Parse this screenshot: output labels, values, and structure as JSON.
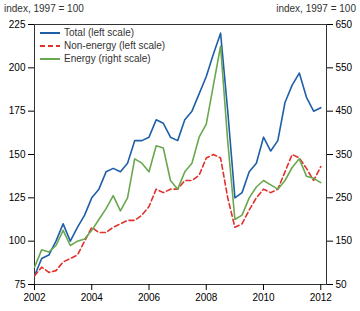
{
  "chart_data": {
    "type": "line",
    "y_label": "index, 1997 = 100",
    "y2_label": "index, 1997 = 100",
    "x": [
      2002,
      2002.25,
      2002.5,
      2002.75,
      2003,
      2003.25,
      2003.5,
      2003.75,
      2004,
      2004.25,
      2004.5,
      2004.75,
      2005,
      2005.25,
      2005.5,
      2005.75,
      2006,
      2006.25,
      2006.5,
      2006.75,
      2007,
      2007.25,
      2007.5,
      2007.75,
      2008,
      2008.25,
      2008.5,
      2008.75,
      2009,
      2009.25,
      2009.5,
      2009.75,
      2010,
      2010.25,
      2010.5,
      2010.75,
      2011,
      2011.25,
      2011.5,
      2011.75,
      2012
    ],
    "series": [
      {
        "name": "Total (left scale)",
        "color": "#1f5fa8",
        "line_style": "solid",
        "values": [
          80,
          90,
          92,
          100,
          110,
          100,
          108,
          115,
          125,
          130,
          140,
          142,
          140,
          145,
          158,
          158,
          160,
          170,
          168,
          160,
          158,
          170,
          175,
          185,
          195,
          208,
          220,
          175,
          125,
          128,
          140,
          145,
          160,
          152,
          158,
          180,
          190,
          197,
          183,
          175,
          177
        ]
      },
      {
        "name": "Non-energy (left scale)",
        "color": "#e0312b",
        "line_style": "dashed",
        "values": [
          80,
          85,
          82,
          83,
          88,
          90,
          92,
          100,
          108,
          105,
          105,
          108,
          110,
          112,
          112,
          115,
          120,
          130,
          128,
          130,
          130,
          135,
          135,
          138,
          148,
          150,
          148,
          125,
          108,
          110,
          118,
          125,
          130,
          128,
          130,
          140,
          150,
          148,
          142,
          135,
          143
        ]
      },
      {
        "name": "Energy (right scale)",
        "color": "#6aa84f",
        "line_style": "solid",
        "axis": "y2",
        "values": [
          90,
          130,
          125,
          140,
          175,
          140,
          150,
          155,
          175,
          200,
          225,
          255,
          220,
          250,
          340,
          330,
          310,
          370,
          365,
          290,
          270,
          310,
          330,
          390,
          420,
          510,
          600,
          380,
          200,
          210,
          250,
          275,
          290,
          280,
          270,
          290,
          320,
          340,
          300,
          295,
          285
        ]
      }
    ],
    "xlim": [
      2002,
      2012.2
    ],
    "xticks": [
      2002,
      2004,
      2006,
      2008,
      2010,
      2012
    ],
    "ylim": [
      75,
      225
    ],
    "yticks": [
      75,
      100,
      125,
      150,
      175,
      200,
      225
    ],
    "y2lim": [
      50,
      650
    ],
    "y2ticks": [
      50,
      150,
      250,
      350,
      450,
      550,
      650
    ],
    "legend": "upper left",
    "grid": false
  }
}
